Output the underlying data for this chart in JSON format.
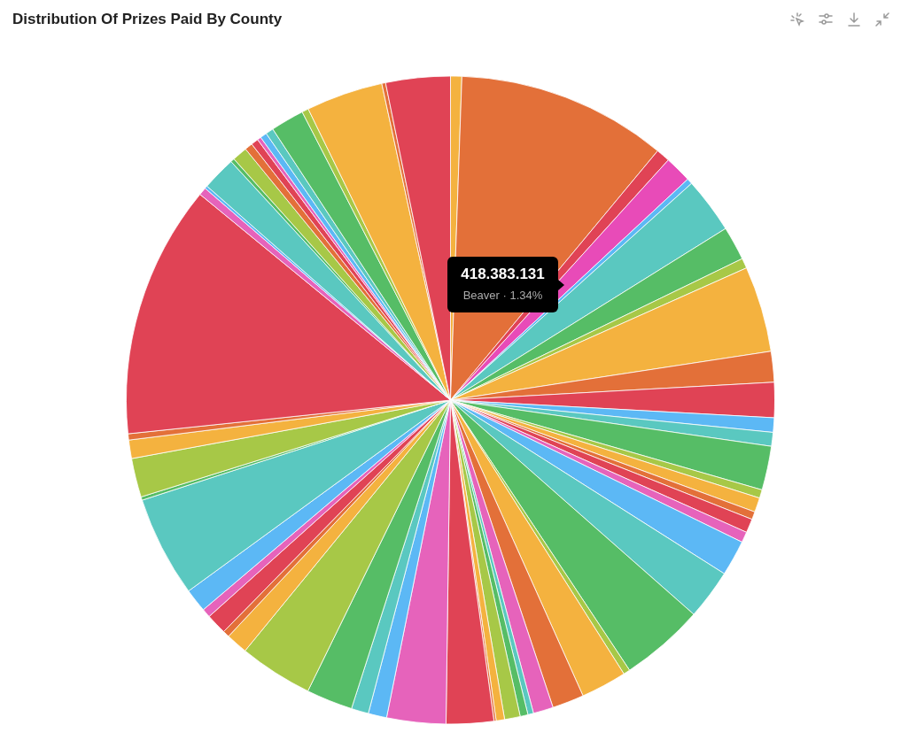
{
  "chart_data": {
    "type": "pie",
    "title": "Distribution Of Prizes Paid By County",
    "categories": [
      null,
      null,
      null,
      null,
      null,
      null,
      null,
      null,
      null,
      null,
      null,
      null,
      null,
      null,
      null,
      null,
      null,
      null,
      null,
      null,
      null,
      null,
      null,
      null,
      null,
      null,
      null,
      null,
      null,
      null,
      null,
      null,
      null,
      null,
      null,
      null,
      null,
      null,
      null,
      null,
      null,
      null,
      null,
      null,
      null,
      null,
      null,
      null,
      null,
      null,
      null,
      null,
      null,
      null,
      null,
      null,
      null,
      null,
      null,
      null,
      null,
      null,
      null
    ],
    "values": [
      0.56,
      10.47,
      0.69,
      1.34,
      0.28,
      2.78,
      1.69,
      0.5,
      4.28,
      1.53,
      1.75,
      0.72,
      0.69,
      2.19,
      0.42,
      0.72,
      0.39,
      0.69,
      0.53,
      1.78,
      2.5,
      4.19,
      0.33,
      2.28,
      1.58,
      1.0,
      0.28,
      0.39,
      0.78,
      0.42,
      0.11,
      2.36,
      2.94,
      0.92,
      0.86,
      2.31,
      3.67,
      1.08,
      0.33,
      1.03,
      0.44,
      1.17,
      5.03,
      0.17,
      1.94,
      0.92,
      0.31,
      12.61,
      0.39,
      0.14,
      1.69,
      0.19,
      0.75,
      0.39,
      0.36,
      0.19,
      0.33,
      0.39,
      1.67,
      0.33,
      3.83,
      0.19,
      3.21
    ],
    "colors": [
      "#f4b23f",
      "#e37039",
      "#e04355",
      "#e84bb8",
      "#5cb8f5",
      "#5ac8c0",
      "#56bd66",
      "#a7c847",
      "#f4b23f",
      "#e37039",
      "#e04355",
      "#5cb8f5",
      "#5ac8c0",
      "#56bd66",
      "#a7c847",
      "#f4b23f",
      "#e37039",
      "#e04355",
      "#e663bb",
      "#5cb8f5",
      "#5ac8c0",
      "#56bd66",
      "#a7c847",
      "#f4b23f",
      "#e37039",
      "#e663bb",
      "#5ac8c0",
      "#56bd66",
      "#a7c847",
      "#f4b23f",
      "#e37039",
      "#e04355",
      "#e663bb",
      "#5cb8f5",
      "#5ac8c0",
      "#56bd66",
      "#a7c847",
      "#f4b23f",
      "#e37039",
      "#e04355",
      "#e663bb",
      "#5cb8f5",
      "#5ac8c0",
      "#56bd66",
      "#a7c847",
      "#f4b23f",
      "#e37039",
      "#e04355",
      "#e663bb",
      "#5cb8f5",
      "#5ac8c0",
      "#56bd66",
      "#a7c847",
      "#e37039",
      "#e04355",
      "#e663bb",
      "#5cb8f5",
      "#5ac8c0",
      "#56bd66",
      "#a7c847",
      "#f4b23f",
      "#e37039",
      "#e04355"
    ],
    "annotations": [
      "418.383.131",
      "Beaver · 1.34%"
    ],
    "legend": false
  }
}
